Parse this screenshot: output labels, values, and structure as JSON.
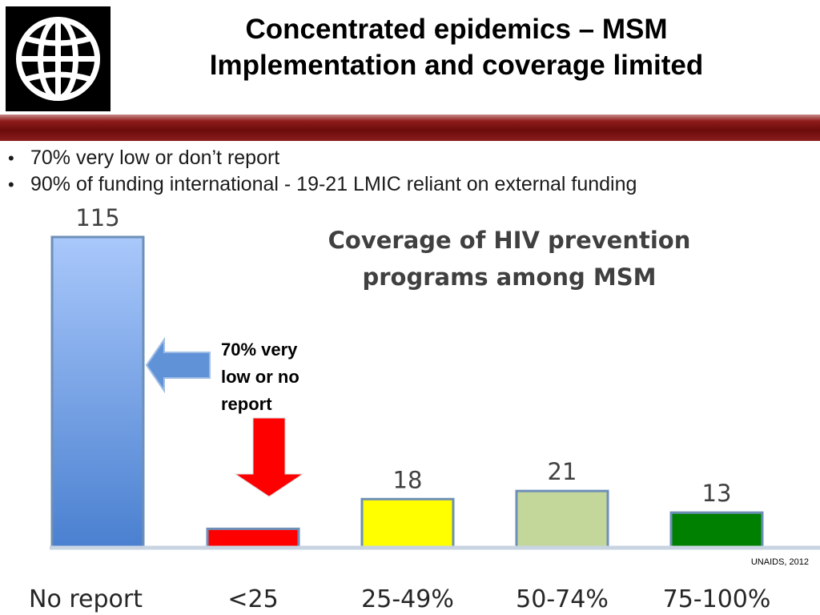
{
  "header": {
    "title_line1": "Concentrated epidemics – MSM",
    "title_line2": "Implementation and coverage limited"
  },
  "bullets": [
    "70% very low or don’t report",
    "90% of funding international - 19-21 LMIC reliant on external funding"
  ],
  "callout": {
    "line1": "70% very",
    "line2": "low or no",
    "line3": "report"
  },
  "source": "UNAIDS, 2012",
  "chart_data": {
    "type": "bar",
    "title_line1": "Coverage of HIV prevention",
    "title_line2": "programs among MSM",
    "categories": [
      "No report",
      "<25",
      "25-49%",
      "50-74%",
      "75-100%"
    ],
    "values": [
      115,
      7,
      18,
      21,
      13
    ],
    "value_labels": [
      "115",
      "",
      "18",
      "21",
      "13"
    ],
    "bar_colors": [
      "#5b8ed8",
      "#ff0000",
      "#ffff00",
      "#c4d79b",
      "#008000"
    ],
    "xlabel": "",
    "ylabel": "",
    "ylim": [
      0,
      115
    ],
    "grid": false,
    "legend": false
  },
  "colors": {
    "banner": "#7a1010",
    "axis": "#c9d4e2",
    "bar_edge": "#6e8fb8",
    "arrow_blue": "#5f92d6",
    "arrow_red": "#ff0000"
  }
}
